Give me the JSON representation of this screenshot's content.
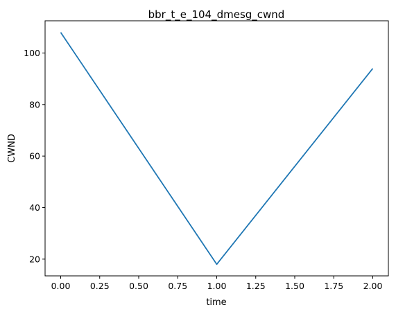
{
  "chart_data": {
    "type": "line",
    "title": "bbr_t_e_104_dmesg_cwnd",
    "xlabel": "time",
    "ylabel": "CWND",
    "xlim": [
      -0.1,
      2.1
    ],
    "ylim": [
      13.5,
      112.5
    ],
    "x_ticks": [
      0.0,
      0.25,
      0.5,
      0.75,
      1.0,
      1.25,
      1.5,
      1.75,
      2.0
    ],
    "x_tick_labels": [
      "0.00",
      "0.25",
      "0.50",
      "0.75",
      "1.00",
      "1.25",
      "1.50",
      "1.75",
      "2.00"
    ],
    "y_ticks": [
      20,
      40,
      60,
      80,
      100
    ],
    "y_tick_labels": [
      "20",
      "40",
      "60",
      "80",
      "100"
    ],
    "grid": false,
    "series": [
      {
        "color": "#1f77b4",
        "x": [
          0.0,
          1.0,
          2.0
        ],
        "y": [
          108,
          18,
          94
        ]
      }
    ]
  }
}
